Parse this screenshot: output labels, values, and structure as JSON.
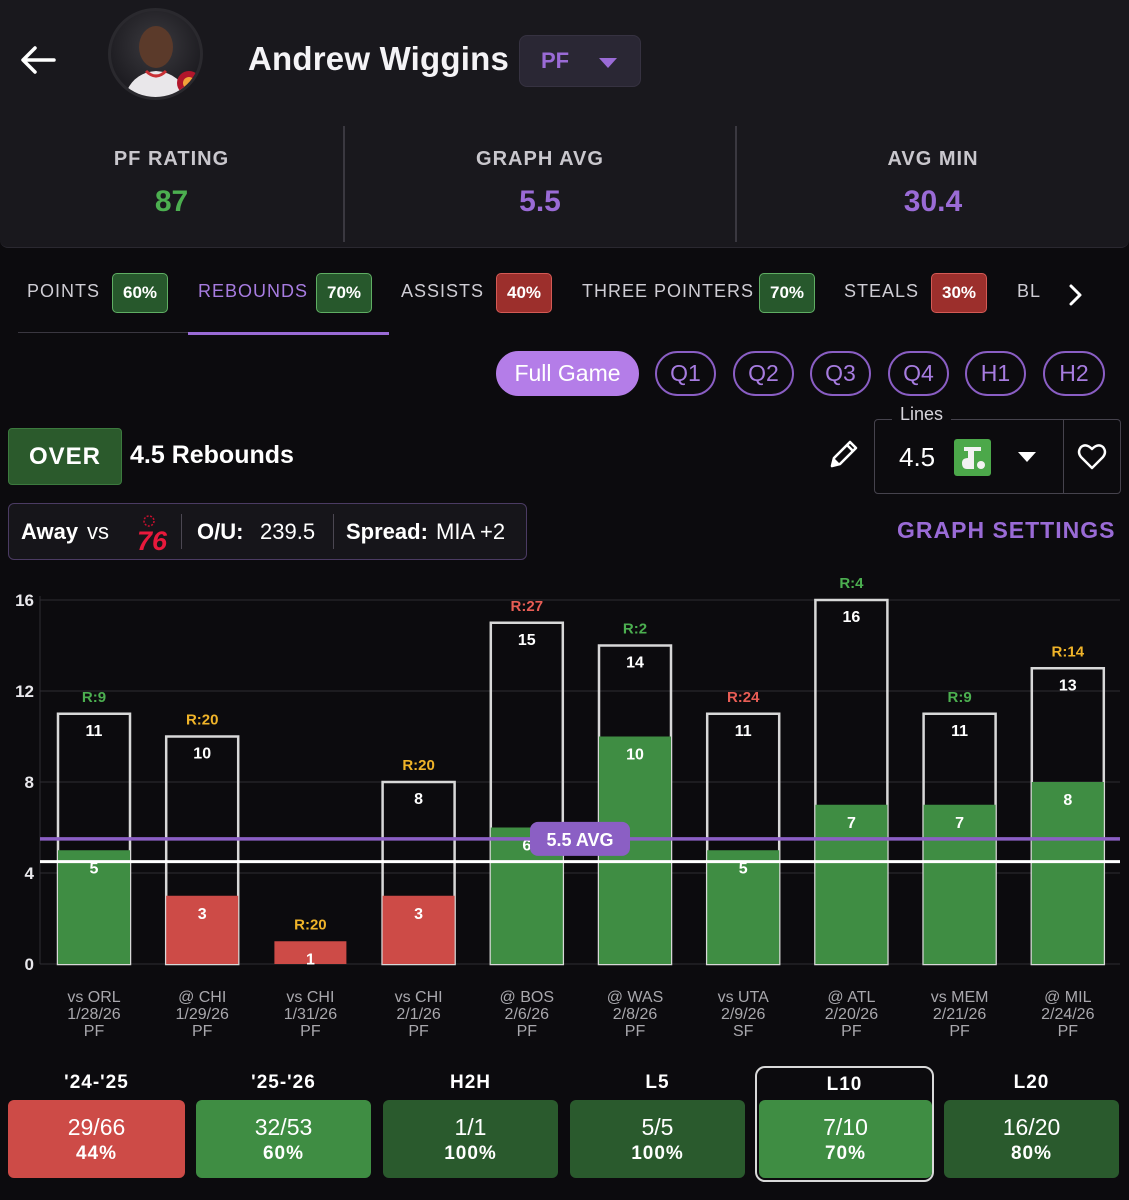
{
  "header": {
    "player_name": "Andrew Wiggins",
    "position": "PF",
    "stats": [
      {
        "label": "PF RATING",
        "value": "87",
        "color": "#4caf50"
      },
      {
        "label": "GRAPH AVG",
        "value": "5.5",
        "color": "#9a6bd6"
      },
      {
        "label": "AVG MIN",
        "value": "30.4",
        "color": "#9a6bd6"
      }
    ]
  },
  "tabs": [
    {
      "label": "POINTS",
      "pct": "60%",
      "status": "green"
    },
    {
      "label": "REBOUNDS",
      "pct": "70%",
      "status": "green",
      "active": true
    },
    {
      "label": "ASSISTS",
      "pct": "40%",
      "status": "red"
    },
    {
      "label": "THREE POINTERS",
      "pct": "70%",
      "status": "green"
    },
    {
      "label": "STEALS",
      "pct": "30%",
      "status": "red"
    },
    {
      "label": "BL"
    }
  ],
  "periods": [
    "Full Game",
    "Q1",
    "Q2",
    "Q3",
    "Q4",
    "H1",
    "H2"
  ],
  "prop": {
    "side": "OVER",
    "line_text": "4.5 Rebounds",
    "lines_label": "Lines",
    "lines_value": "4.5"
  },
  "matchup": {
    "location": "Away",
    "vs": "vs",
    "ou_label": "O/U:",
    "ou_value": "239.5",
    "spread_label": "Spread:",
    "spread_value": "MIA +2",
    "team_logo_text": "76"
  },
  "graph_settings_label": "GRAPH SETTINGS",
  "chart_data": {
    "type": "bar",
    "y_ticks": [
      0,
      4,
      8,
      12,
      16
    ],
    "ylim": [
      0,
      16
    ],
    "line_value": 4.5,
    "avg_value": 5.5,
    "avg_label": "5.5 AVG",
    "games": [
      {
        "opp": "vs ORL",
        "date": "1/28/26",
        "pos": "PF",
        "value": 5,
        "rank": "R:9",
        "rank_color": "#4caf50",
        "high": 11,
        "hit": true
      },
      {
        "opp": "@ CHI",
        "date": "1/29/26",
        "pos": "PF",
        "value": 3,
        "rank": "R:20",
        "rank_color": "#f0b429",
        "high": 10,
        "hit": false
      },
      {
        "opp": "vs CHI",
        "date": "1/31/26",
        "pos": "PF",
        "value": 1,
        "rank": "R:20",
        "rank_color": "#f0b429",
        "high": null,
        "hit": false
      },
      {
        "opp": "vs CHI",
        "date": "2/1/26",
        "pos": "PF",
        "value": 3,
        "rank": "R:20",
        "rank_color": "#f0b429",
        "high": 8,
        "hit": false
      },
      {
        "opp": "@ BOS",
        "date": "2/6/26",
        "pos": "PF",
        "value": 6,
        "rank": "R:27",
        "rank_color": "#e85d55",
        "high": 15,
        "hit": true
      },
      {
        "opp": "@ WAS",
        "date": "2/8/26",
        "pos": "PF",
        "value": 10,
        "rank": "R:2",
        "rank_color": "#4caf50",
        "high": 14,
        "hit": true
      },
      {
        "opp": "vs UTA",
        "date": "2/9/26",
        "pos": "SF",
        "value": 5,
        "rank": "R:24",
        "rank_color": "#e85d55",
        "high": 11,
        "hit": true
      },
      {
        "opp": "@ ATL",
        "date": "2/20/26",
        "pos": "PF",
        "value": 7,
        "rank": "R:4",
        "rank_color": "#4caf50",
        "high": 16,
        "hit": true
      },
      {
        "opp": "vs MEM",
        "date": "2/21/26",
        "pos": "PF",
        "value": 7,
        "rank": "R:9",
        "rank_color": "#4caf50",
        "high": 11,
        "hit": true
      },
      {
        "opp": "@ MIL",
        "date": "2/24/26",
        "pos": "PF",
        "value": 8,
        "rank": "R:14",
        "rank_color": "#f0b429",
        "high": 13,
        "hit": true
      }
    ]
  },
  "summary": [
    {
      "label": "'24-'25",
      "record": "29/66",
      "pct": "44%",
      "color": "#cd4b47"
    },
    {
      "label": "'25-'26",
      "record": "32/53",
      "pct": "60%",
      "color": "#3f8d43"
    },
    {
      "label": "H2H",
      "record": "1/1",
      "pct": "100%",
      "color": "#2a5a2d"
    },
    {
      "label": "L5",
      "record": "5/5",
      "pct": "100%",
      "color": "#2a5a2d"
    },
    {
      "label": "L10",
      "record": "7/10",
      "pct": "70%",
      "color": "#3f8d43",
      "selected": true
    },
    {
      "label": "L20",
      "record": "16/20",
      "pct": "80%",
      "color": "#2a5a2d"
    }
  ]
}
